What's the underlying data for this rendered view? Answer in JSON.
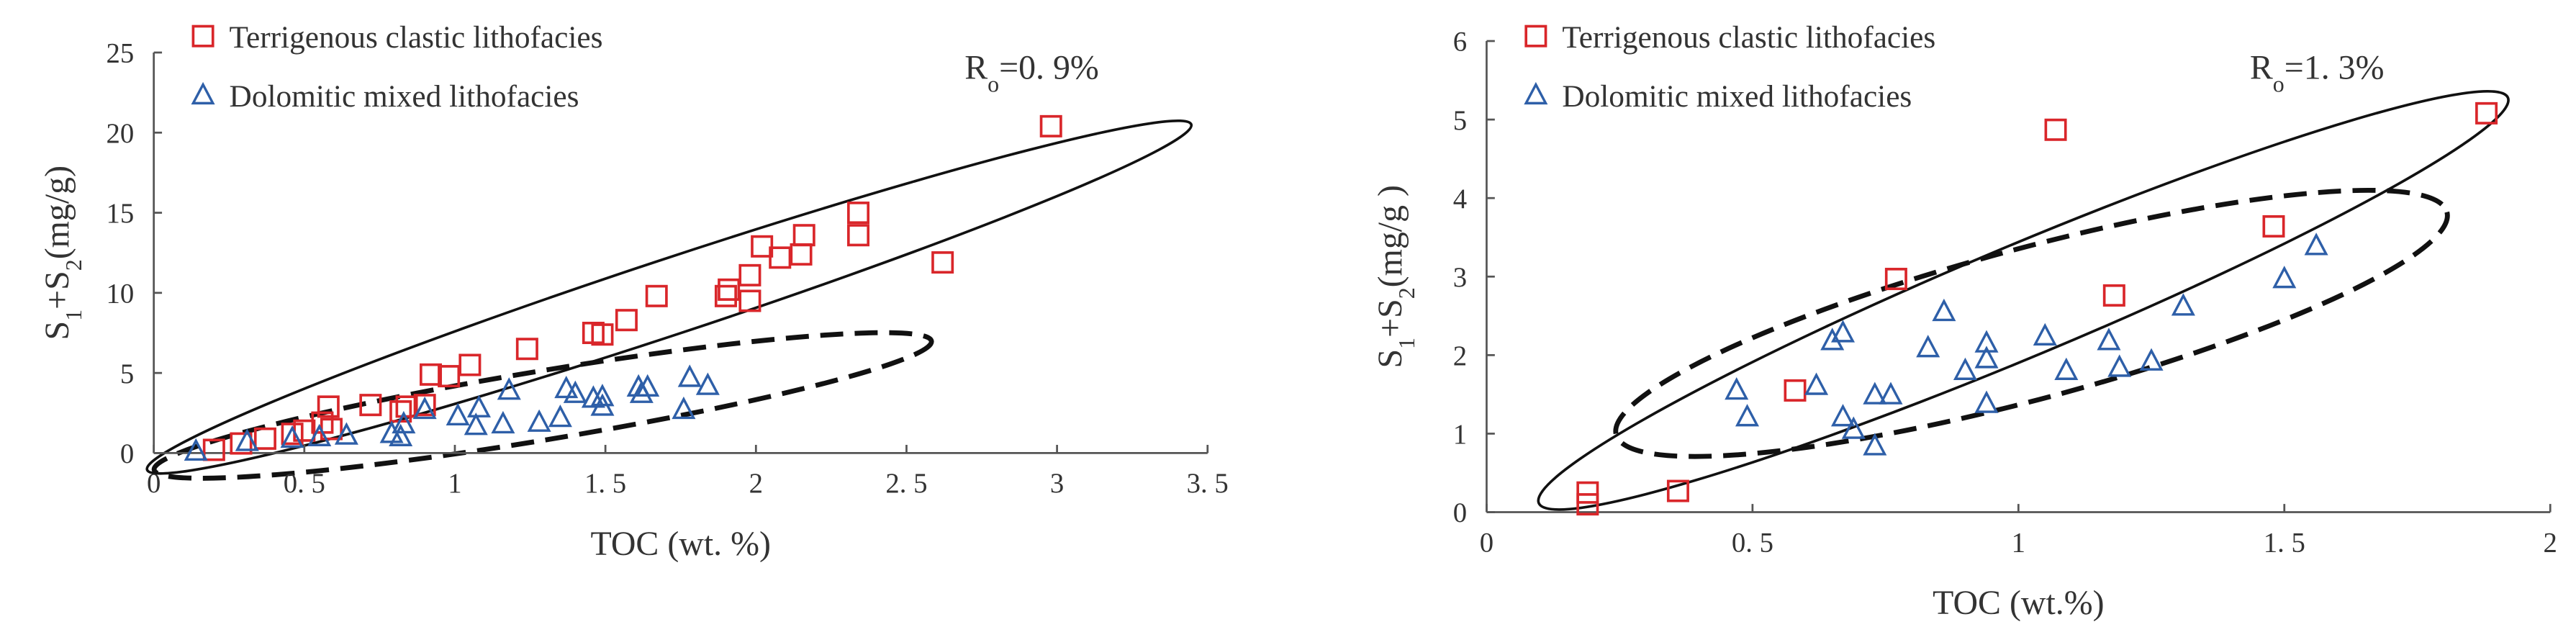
{
  "chart_data": [
    {
      "type": "scatter",
      "legend": "top-left",
      "annotation": [
        "R",
        "o",
        "=0. 9%"
      ],
      "xlabel": "TOC (wt. %)",
      "ylabel": [
        "S",
        "1",
        "+S",
        "2",
        "(mg/g)"
      ],
      "xlim": [
        0,
        3.5
      ],
      "ylim": [
        0,
        25
      ],
      "xticks": [
        0,
        {
          "value": 0.5,
          "label": "0. 5"
        },
        1,
        {
          "value": 1.5,
          "label": "1. 5"
        },
        2,
        {
          "value": 2.5,
          "label": "2. 5"
        },
        3,
        {
          "value": 3.5,
          "label": "3. 5"
        }
      ],
      "yticks": [
        0,
        5,
        10,
        15,
        20,
        25
      ],
      "series": [
        {
          "name": "Terrigenous clastic lithofacies",
          "color": "#d9262a",
          "marker": "square",
          "x": [
            2.98,
            2.34,
            2.34,
            2.62,
            2.16,
            2.15,
            2.08,
            2.02,
            1.98,
            1.98,
            1.91,
            1.9,
            1.67,
            1.57,
            1.49,
            1.46,
            1.24,
            1.05,
            0.98,
            0.92,
            0.9,
            0.84,
            0.82,
            0.72,
            0.59,
            0.58,
            0.56,
            0.5,
            0.46,
            0.37,
            0.29,
            0.2
          ],
          "values": [
            20.4,
            15.0,
            13.6,
            11.9,
            13.6,
            12.4,
            12.2,
            12.9,
            11.1,
            9.5,
            10.2,
            9.8,
            9.8,
            8.3,
            7.4,
            7.5,
            6.5,
            5.5,
            4.8,
            4.9,
            3.0,
            2.9,
            2.6,
            3.0,
            1.5,
            2.9,
            1.9,
            1.4,
            1.2,
            0.9,
            0.6,
            0.2
          ]
        },
        {
          "name": "Dolomitic mixed lithofacies",
          "color": "#2e5fa8",
          "marker": "triangle",
          "x": [
            0.14,
            0.31,
            0.46,
            0.55,
            0.64,
            0.79,
            0.83,
            0.82,
            0.9,
            1.01,
            1.07,
            1.08,
            1.16,
            1.18,
            1.28,
            1.35,
            1.37,
            1.4,
            1.46,
            1.49,
            1.49,
            1.61,
            1.62,
            1.64,
            1.76,
            1.78,
            1.84
          ],
          "values": [
            0.1,
            0.7,
            0.9,
            1.0,
            1.1,
            1.2,
            1.8,
            1.0,
            2.7,
            2.3,
            1.7,
            2.8,
            1.8,
            3.9,
            1.9,
            2.2,
            4.0,
            3.7,
            3.4,
            2.9,
            3.5,
            4.1,
            3.7,
            4.1,
            2.7,
            4.7,
            4.2
          ]
        }
      ]
    },
    {
      "type": "scatter",
      "legend": "top-left",
      "annotation": [
        "R",
        "o",
        "=1. 3%"
      ],
      "xlabel": "TOC (wt.%)",
      "ylabel": [
        "S",
        "1",
        "+S",
        "2",
        "(mg/g )"
      ],
      "xlim": [
        0,
        2
      ],
      "ylim": [
        0,
        6
      ],
      "xticks": [
        0,
        {
          "value": 0.5,
          "label": "0. 5"
        },
        1,
        {
          "value": 1.5,
          "label": "1. 5"
        },
        2
      ],
      "yticks": [
        0,
        1,
        2,
        3,
        4,
        5,
        6
      ],
      "series": [
        {
          "name": "Terrigenous clastic lithofacies",
          "color": "#d9262a",
          "marker": "square",
          "x": [
            0.19,
            0.19,
            0.36,
            0.58,
            0.77,
            1.07,
            1.18,
            1.48,
            1.88
          ],
          "values": [
            0.25,
            0.1,
            0.27,
            1.55,
            2.97,
            4.87,
            2.76,
            3.64,
            5.08
          ]
        },
        {
          "name": "Dolomitic mixed lithofacies",
          "color": "#2e5fa8",
          "marker": "triangle",
          "x": [
            0.47,
            0.49,
            0.62,
            0.65,
            0.67,
            0.67,
            0.69,
            0.73,
            0.73,
            0.76,
            0.83,
            0.86,
            0.9,
            0.94,
            0.94,
            0.94,
            1.05,
            1.09,
            1.17,
            1.19,
            1.25,
            1.31,
            1.5,
            1.56
          ],
          "values": [
            1.55,
            1.21,
            1.61,
            2.18,
            2.28,
            1.21,
            1.05,
            0.84,
            1.49,
            1.49,
            2.09,
            2.55,
            1.8,
            1.95,
            2.15,
            1.38,
            2.24,
            1.8,
            2.18,
            1.84,
            1.92,
            2.62,
            2.97,
            3.39
          ]
        }
      ]
    }
  ]
}
